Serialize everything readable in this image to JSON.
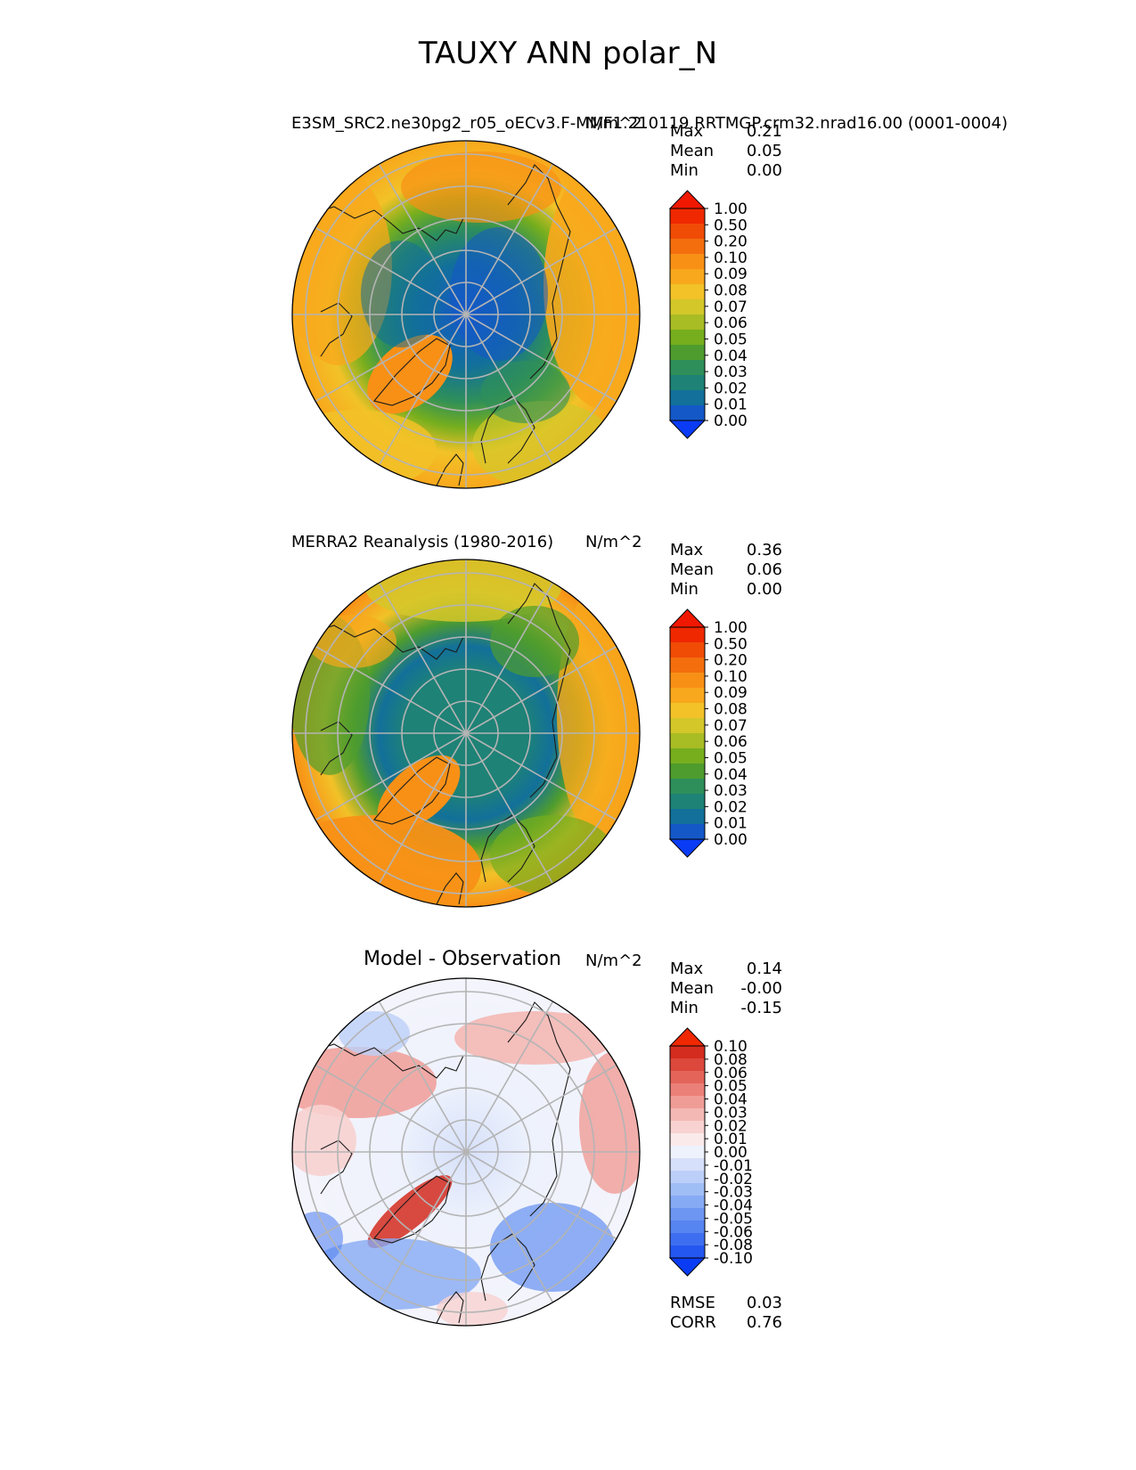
{
  "figure": {
    "title": "TAUXY ANN polar_N"
  },
  "panels": [
    {
      "id": "model",
      "left_title": "E3SM_SRC2.ne30pg2_r05_oECv3.F-MMF1.210119.RRTMGP.crm32.nrad16.00 (0001-0004)",
      "units": "N/m^2",
      "stats": [
        {
          "label": "Max",
          "value": "0.21"
        },
        {
          "label": "Mean",
          "value": "0.05"
        },
        {
          "label": "Min",
          "value": "0.00"
        }
      ],
      "colorbar": {
        "palette": "sequential",
        "labels": [
          "1.00",
          "0.50",
          "0.20",
          "0.10",
          "0.09",
          "0.08",
          "0.07",
          "0.06",
          "0.05",
          "0.04",
          "0.03",
          "0.02",
          "0.01",
          "0.00"
        ]
      }
    },
    {
      "id": "obs",
      "left_title": "MERRA2 Reanalysis (1980-2016)",
      "units": "N/m^2",
      "stats": [
        {
          "label": "Max",
          "value": "0.36"
        },
        {
          "label": "Mean",
          "value": "0.06"
        },
        {
          "label": "Min",
          "value": "0.00"
        }
      ],
      "colorbar": {
        "palette": "sequential",
        "labels": [
          "1.00",
          "0.50",
          "0.20",
          "0.10",
          "0.09",
          "0.08",
          "0.07",
          "0.06",
          "0.05",
          "0.04",
          "0.03",
          "0.02",
          "0.01",
          "0.00"
        ]
      }
    },
    {
      "id": "diff",
      "left_title": "Model - Observation",
      "units": "N/m^2",
      "stats": [
        {
          "label": "Max",
          "value": "0.14"
        },
        {
          "label": "Mean",
          "value": "-0.00"
        },
        {
          "label": "Min",
          "value": "-0.15"
        }
      ],
      "colorbar": {
        "palette": "diverging",
        "labels": [
          "0.10",
          "0.08",
          "0.06",
          "0.05",
          "0.04",
          "0.03",
          "0.02",
          "0.01",
          "0.00",
          "-0.01",
          "-0.02",
          "-0.03",
          "-0.04",
          "-0.05",
          "-0.06",
          "-0.08",
          "-0.10"
        ]
      },
      "metrics": [
        {
          "label": "RMSE",
          "value": "0.03"
        },
        {
          "label": "CORR",
          "value": "0.76"
        }
      ]
    }
  ],
  "colors": {
    "sequential": [
      "#0a3cf5",
      "#1458c8",
      "#12709a",
      "#1e8276",
      "#2e8f5a",
      "#4e9c2e",
      "#76ae1e",
      "#a8bc24",
      "#d3c72a",
      "#f2c228",
      "#f8a81c",
      "#f89016",
      "#f46e0e",
      "#f04c06",
      "#f02800",
      "#f01800"
    ],
    "diverging": [
      "#0a3cf5",
      "#2456f0",
      "#3e6ef0",
      "#5684f0",
      "#6c96f2",
      "#86aaf4",
      "#a0bef6",
      "#bccff8",
      "#d6e0fa",
      "#eef2fc",
      "#fbeaea",
      "#f8d2d0",
      "#f4b8b4",
      "#f09c96",
      "#ea8078",
      "#e4645a",
      "#dc483c",
      "#d42c1e",
      "#f02800"
    ],
    "gridline": "#b4b4b4",
    "coast": "#1a1a1a"
  }
}
